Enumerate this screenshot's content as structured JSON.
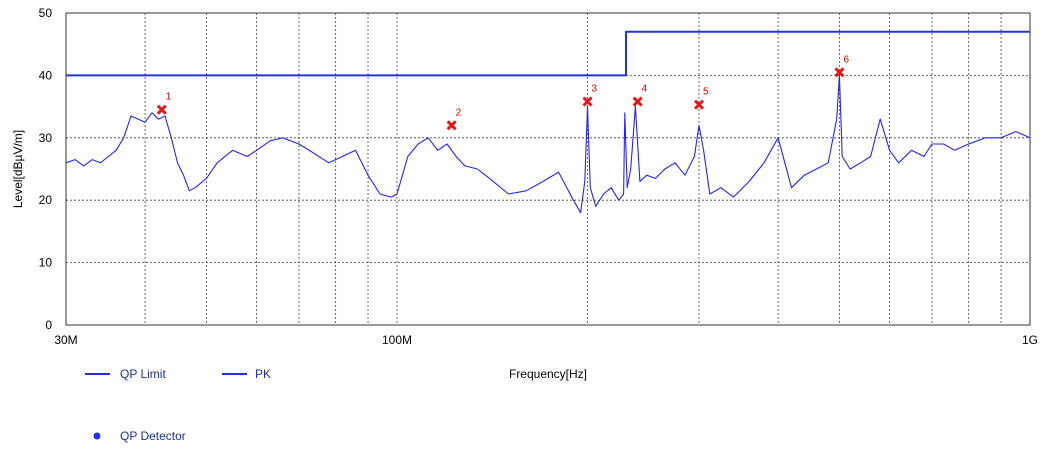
{
  "chart_data": {
    "type": "line",
    "xlabel": "Frequency[Hz]",
    "ylabel": "Level[dBµV/m]",
    "x_scale": "log",
    "xlim": [
      30000000,
      1000000000
    ],
    "ylim": [
      0,
      50
    ],
    "x_tick_labels": [
      {
        "value": 30000000,
        "label": "30M"
      },
      {
        "value": 100000000,
        "label": "100M"
      },
      {
        "value": 1000000000,
        "label": "1G"
      }
    ],
    "y_ticks": [
      0,
      10,
      20,
      30,
      40,
      50
    ],
    "grid": true,
    "colors": {
      "limit": "#2233dd",
      "pk": "#2626e0",
      "marker": "#e11b1b",
      "grid": "#444444"
    },
    "series": [
      {
        "name": "QP Limit",
        "x": [
          30000000,
          230000000,
          230000000,
          1000000000
        ],
        "y": [
          40,
          40,
          47,
          47
        ]
      },
      {
        "name": "PK",
        "x": [
          30000000,
          31000000,
          32000000,
          33000000,
          34000000,
          35000000,
          36000000,
          37000000,
          38000000,
          39000000,
          40000000,
          41000000,
          42000000,
          43000000,
          44000000,
          45000000,
          46000000,
          47000000,
          48000000,
          50000000,
          52000000,
          55000000,
          58000000,
          60000000,
          63000000,
          66000000,
          70000000,
          74000000,
          78000000,
          82000000,
          86000000,
          90000000,
          94000000,
          98000000,
          100000000,
          104000000,
          108000000,
          112000000,
          116000000,
          120000000,
          124000000,
          128000000,
          134000000,
          140000000,
          150000000,
          160000000,
          170000000,
          180000000,
          190000000,
          195000000,
          198000000,
          200000000,
          202000000,
          206000000,
          212000000,
          218000000,
          224000000,
          228000000,
          229000000,
          231000000,
          234000000,
          238000000,
          242000000,
          248000000,
          256000000,
          265000000,
          275000000,
          285000000,
          295000000,
          300000000,
          305000000,
          312000000,
          325000000,
          340000000,
          360000000,
          380000000,
          400000000,
          420000000,
          440000000,
          460000000,
          480000000,
          495000000,
          500000000,
          505000000,
          520000000,
          540000000,
          560000000,
          580000000,
          600000000,
          620000000,
          650000000,
          680000000,
          700000000,
          730000000,
          760000000,
          800000000,
          850000000,
          900000000,
          950000000,
          1000000000
        ],
        "y": [
          26,
          26.5,
          25.5,
          26.5,
          26,
          27,
          28,
          30,
          33.5,
          33,
          32.5,
          34,
          33,
          33.5,
          30,
          26,
          24,
          21.5,
          22,
          23.5,
          26,
          28,
          27,
          28,
          29.5,
          30,
          29,
          27.5,
          26,
          27,
          28,
          24,
          21,
          20.5,
          21,
          27,
          29,
          30,
          28,
          29,
          27,
          25.5,
          25,
          23.5,
          21,
          21.5,
          23,
          24.5,
          20,
          18,
          23,
          35,
          22,
          19,
          21,
          22,
          20,
          21,
          34,
          22,
          25,
          35,
          23,
          24,
          23.5,
          25,
          26,
          24,
          27,
          32,
          28,
          21,
          22,
          20.5,
          23,
          26,
          30,
          22,
          24,
          25,
          26,
          33,
          40,
          27,
          25,
          26,
          27,
          33,
          28,
          26,
          28,
          27,
          29,
          29,
          28,
          29,
          30,
          30,
          31,
          30
        ]
      }
    ],
    "markers": [
      {
        "label": "1",
        "x": 42500000,
        "y": 34.5
      },
      {
        "label": "2",
        "x": 122000000,
        "y": 32
      },
      {
        "label": "3",
        "x": 200000000,
        "y": 35.8
      },
      {
        "label": "4",
        "x": 240000000,
        "y": 35.8
      },
      {
        "label": "5",
        "x": 300000000,
        "y": 35.3
      },
      {
        "label": "6",
        "x": 500000000,
        "y": 40.5
      }
    ],
    "legend": [
      {
        "name": "QP Limit",
        "symbol": "line"
      },
      {
        "name": "PK",
        "symbol": "line"
      },
      {
        "name": "QP Detector",
        "symbol": "dot"
      }
    ]
  }
}
